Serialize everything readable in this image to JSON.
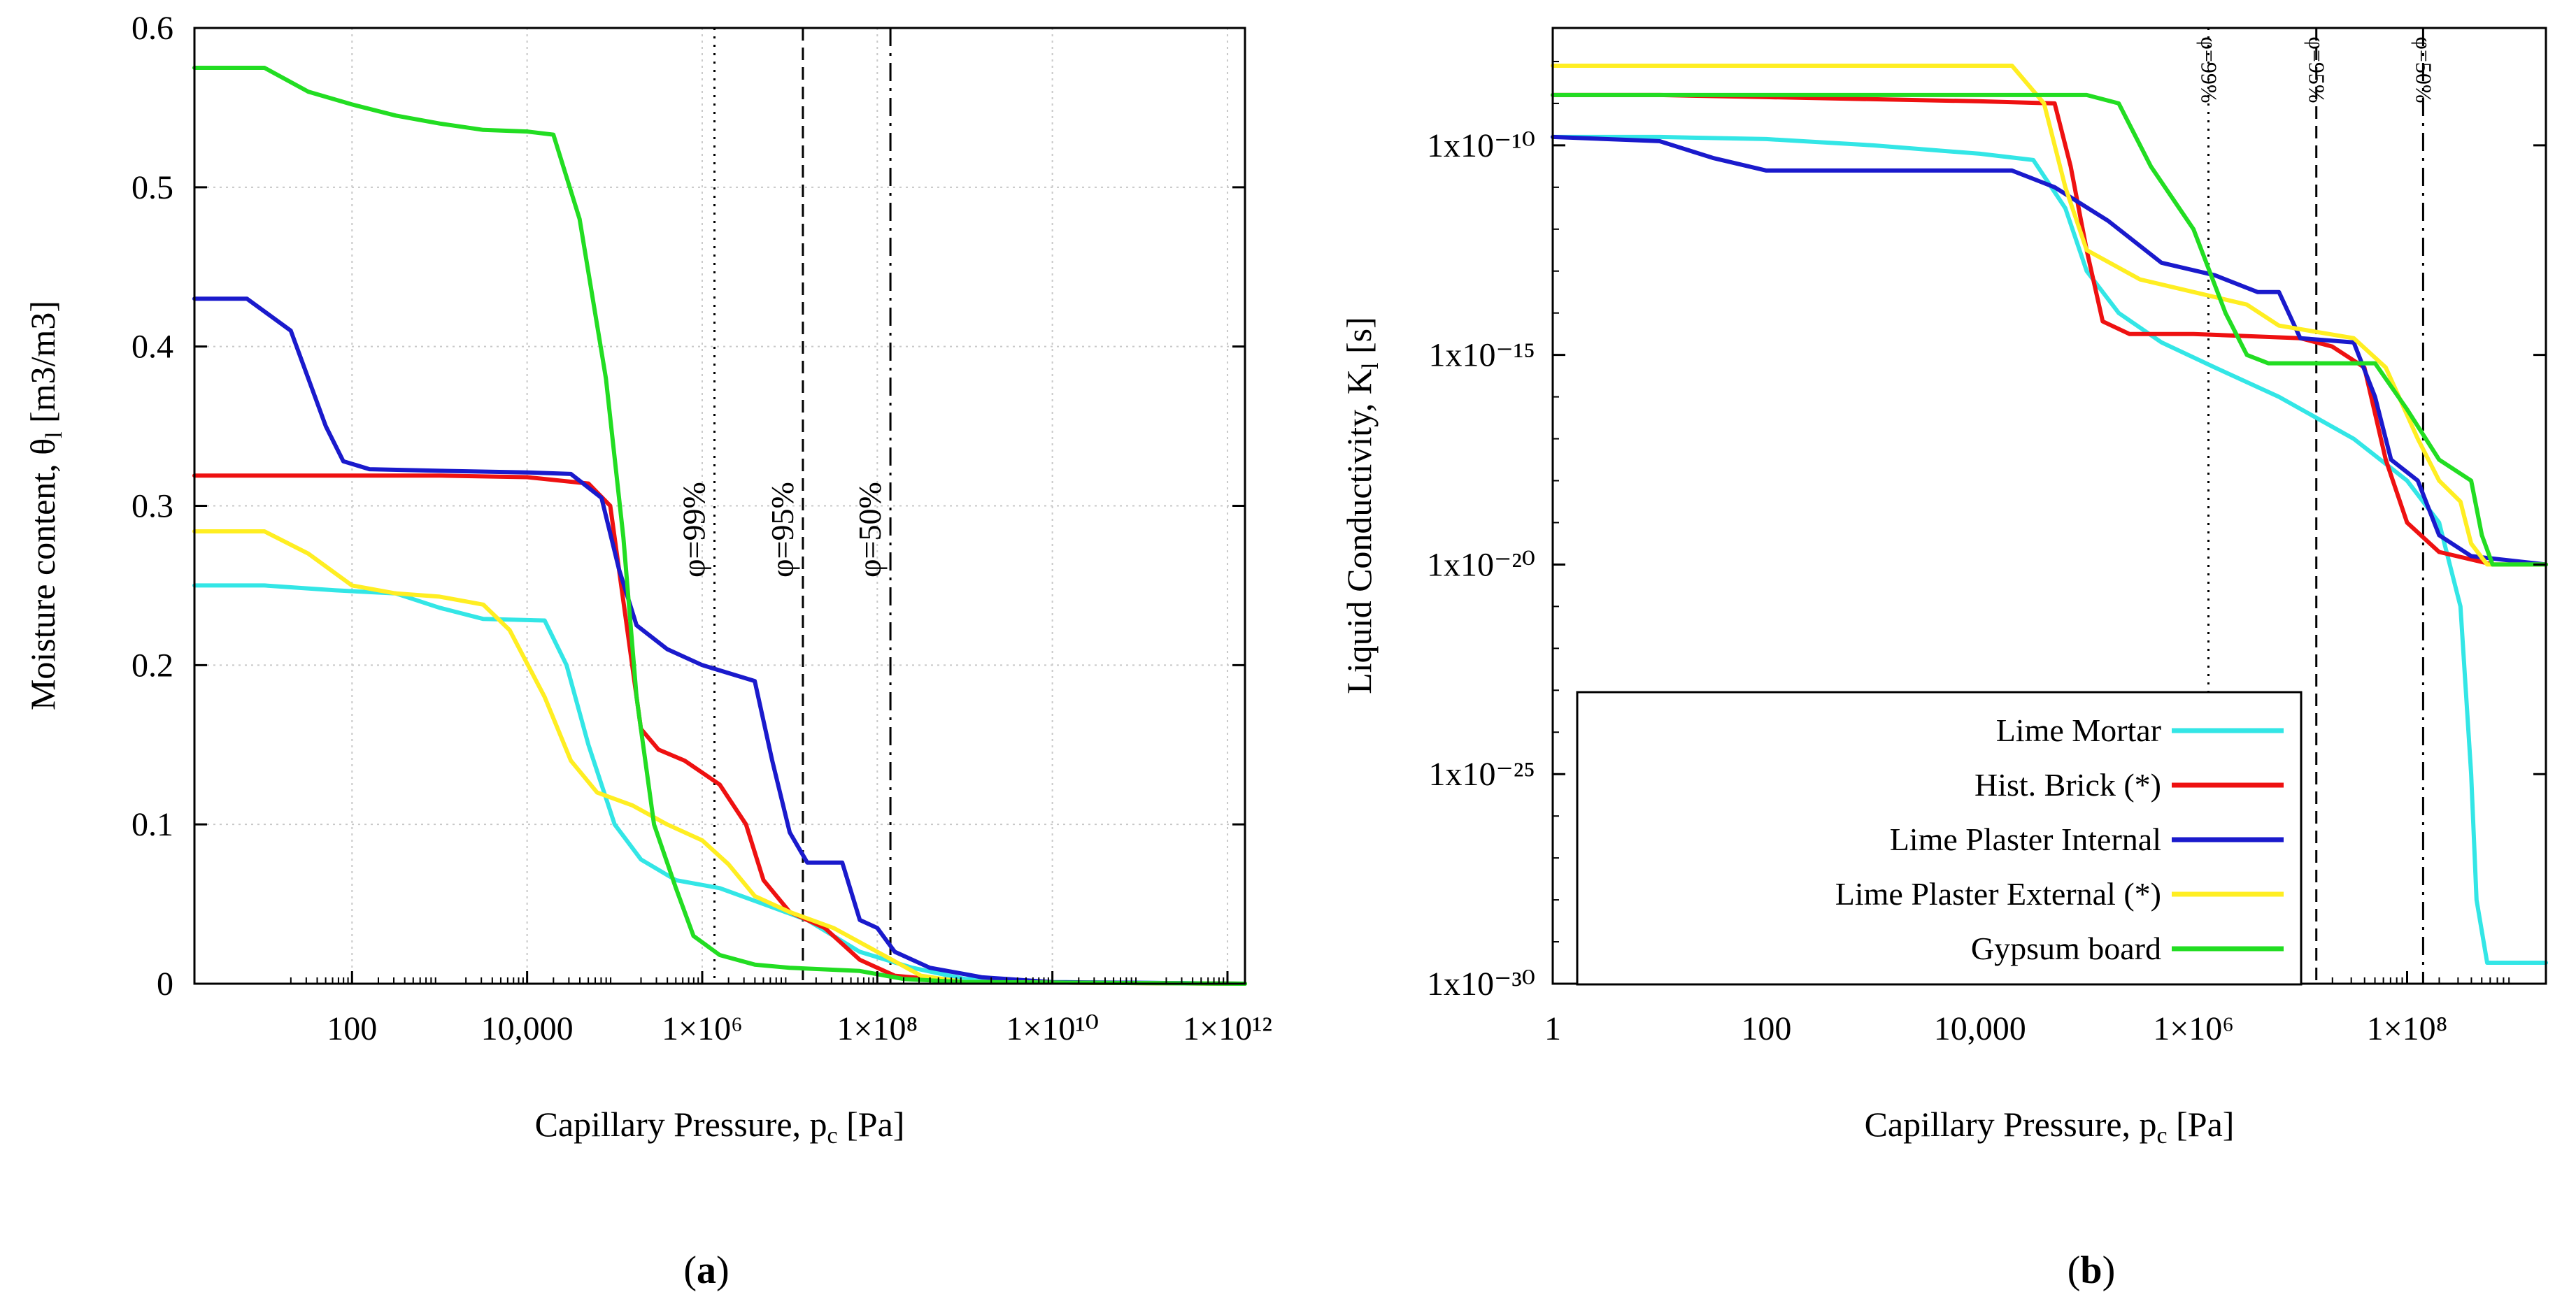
{
  "panel_labels": [
    "(a)",
    "(b)"
  ],
  "chart_data": [
    {
      "type": "line",
      "panel": "(a)",
      "xscale": "log",
      "xlim_log10": [
        0.2,
        12.2
      ],
      "ylim": [
        0,
        0.6
      ],
      "xlabel": "Capillary Pressure, p_c [Pa]",
      "ylabel": "Moisture content, θ_l [m3/m3]",
      "grid": true,
      "x_ticks": [
        {
          "log10": 2,
          "label": "100"
        },
        {
          "log10": 4,
          "label": "10,000"
        },
        {
          "log10": 6,
          "label": "1×10⁶"
        },
        {
          "log10": 8,
          "label": "1×10⁸"
        },
        {
          "log10": 10,
          "label": "1×10¹⁰"
        },
        {
          "log10": 12,
          "label": "1×10¹²"
        }
      ],
      "y_ticks": [
        {
          "value": 0,
          "label": "0"
        },
        {
          "value": 0.1,
          "label": "0.1"
        },
        {
          "value": 0.2,
          "label": "0.2"
        },
        {
          "value": 0.3,
          "label": "0.3"
        },
        {
          "value": 0.4,
          "label": "0.4"
        },
        {
          "value": 0.5,
          "label": "0.5"
        },
        {
          "value": 0.6,
          "label": "0.6"
        }
      ],
      "reference_lines": [
        {
          "label": "φ=99%",
          "log10": 6.14,
          "style": "dotted",
          "label_y": 0.255
        },
        {
          "label": "φ=95%",
          "log10": 7.15,
          "style": "dashed",
          "label_y": 0.255
        },
        {
          "label": "φ=50%",
          "log10": 8.15,
          "style": "dashdot",
          "label_y": 0.255
        }
      ],
      "series": [
        {
          "name": "Lime Mortar",
          "color": "#33e6e6",
          "points": [
            [
              0.2,
              0.25
            ],
            [
              1.0,
              0.25
            ],
            [
              1.8,
              0.247
            ],
            [
              2.5,
              0.245
            ],
            [
              3.0,
              0.236
            ],
            [
              3.5,
              0.229
            ],
            [
              4.2,
              0.228
            ],
            [
              4.45,
              0.2
            ],
            [
              4.7,
              0.15
            ],
            [
              5.0,
              0.1
            ],
            [
              5.3,
              0.078
            ],
            [
              5.7,
              0.065
            ],
            [
              6.2,
              0.06
            ],
            [
              6.7,
              0.05
            ],
            [
              7.2,
              0.04
            ],
            [
              7.8,
              0.02
            ],
            [
              8.4,
              0.01
            ],
            [
              9.0,
              0.003
            ],
            [
              10.0,
              0.001
            ],
            [
              12.2,
              0
            ]
          ]
        },
        {
          "name": "Hist. Brick (*)",
          "color": "#ee1111",
          "points": [
            [
              0.2,
              0.319
            ],
            [
              2.0,
              0.319
            ],
            [
              3.0,
              0.319
            ],
            [
              4.0,
              0.318
            ],
            [
              4.7,
              0.314
            ],
            [
              4.95,
              0.3
            ],
            [
              5.1,
              0.24
            ],
            [
              5.3,
              0.16
            ],
            [
              5.5,
              0.147
            ],
            [
              5.8,
              0.14
            ],
            [
              6.2,
              0.125
            ],
            [
              6.5,
              0.1
            ],
            [
              6.7,
              0.065
            ],
            [
              7.0,
              0.045
            ],
            [
              7.4,
              0.035
            ],
            [
              7.8,
              0.015
            ],
            [
              8.2,
              0.005
            ],
            [
              9.0,
              0.001
            ],
            [
              12.2,
              0
            ]
          ]
        },
        {
          "name": "Lime Plaster Internal",
          "color": "#1a1acc",
          "points": [
            [
              0.2,
              0.43
            ],
            [
              0.8,
              0.43
            ],
            [
              1.3,
              0.41
            ],
            [
              1.7,
              0.35
            ],
            [
              1.9,
              0.328
            ],
            [
              2.2,
              0.323
            ],
            [
              3.0,
              0.322
            ],
            [
              4.0,
              0.321
            ],
            [
              4.5,
              0.32
            ],
            [
              4.85,
              0.305
            ],
            [
              5.05,
              0.26
            ],
            [
              5.25,
              0.225
            ],
            [
              5.6,
              0.21
            ],
            [
              6.0,
              0.2
            ],
            [
              6.6,
              0.19
            ],
            [
              6.8,
              0.14
            ],
            [
              7.0,
              0.095
            ],
            [
              7.2,
              0.076
            ],
            [
              7.6,
              0.076
            ],
            [
              7.8,
              0.04
            ],
            [
              8.0,
              0.035
            ],
            [
              8.2,
              0.02
            ],
            [
              8.6,
              0.01
            ],
            [
              9.2,
              0.004
            ],
            [
              10.0,
              0.001
            ],
            [
              12.2,
              0
            ]
          ]
        },
        {
          "name": "Lime Plaster External (*)",
          "color": "#ffee22",
          "points": [
            [
              0.2,
              0.284
            ],
            [
              1.0,
              0.284
            ],
            [
              1.5,
              0.27
            ],
            [
              2.0,
              0.25
            ],
            [
              2.5,
              0.245
            ],
            [
              3.0,
              0.243
            ],
            [
              3.5,
              0.238
            ],
            [
              3.8,
              0.222
            ],
            [
              4.2,
              0.18
            ],
            [
              4.5,
              0.14
            ],
            [
              4.8,
              0.12
            ],
            [
              5.2,
              0.112
            ],
            [
              5.6,
              0.1
            ],
            [
              6.0,
              0.09
            ],
            [
              6.3,
              0.075
            ],
            [
              6.6,
              0.055
            ],
            [
              7.0,
              0.045
            ],
            [
              7.5,
              0.035
            ],
            [
              8.0,
              0.02
            ],
            [
              8.5,
              0.005
            ],
            [
              9.0,
              0.001
            ],
            [
              12.2,
              0
            ]
          ]
        },
        {
          "name": "Gypsum board",
          "color": "#22dd22",
          "points": [
            [
              0.2,
              0.575
            ],
            [
              1.0,
              0.575
            ],
            [
              1.5,
              0.56
            ],
            [
              2.0,
              0.552
            ],
            [
              2.5,
              0.545
            ],
            [
              3.0,
              0.54
            ],
            [
              3.5,
              0.536
            ],
            [
              4.0,
              0.535
            ],
            [
              4.3,
              0.533
            ],
            [
              4.6,
              0.48
            ],
            [
              4.9,
              0.38
            ],
            [
              5.1,
              0.28
            ],
            [
              5.25,
              0.18
            ],
            [
              5.45,
              0.1
            ],
            [
              5.7,
              0.06
            ],
            [
              5.9,
              0.03
            ],
            [
              6.2,
              0.018
            ],
            [
              6.6,
              0.012
            ],
            [
              7.0,
              0.01
            ],
            [
              7.8,
              0.008
            ],
            [
              8.3,
              0.003
            ],
            [
              9.0,
              0.001
            ],
            [
              12.2,
              0
            ]
          ]
        }
      ]
    },
    {
      "type": "line",
      "panel": "(b)",
      "xscale": "log",
      "yscale": "log",
      "xlim_log10": [
        0,
        9.3
      ],
      "ylim_log10": [
        -30,
        -7.2
      ],
      "xlabel": "Capillary Pressure, p_c [Pa]",
      "ylabel": "Liquid Conductivity, K_l [s]",
      "grid": false,
      "x_ticks": [
        {
          "log10": 0,
          "label": "1"
        },
        {
          "log10": 2,
          "label": "100"
        },
        {
          "log10": 4,
          "label": "10,000"
        },
        {
          "log10": 6,
          "label": "1×10⁶"
        },
        {
          "log10": 8,
          "label": "1×10⁸"
        }
      ],
      "y_ticks": [
        {
          "log10": -10,
          "label": "1x10⁻¹⁰"
        },
        {
          "log10": -15,
          "label": "1x10⁻¹⁵"
        },
        {
          "log10": -20,
          "label": "1x10⁻²⁰"
        },
        {
          "log10": -25,
          "label": "1x10⁻²⁵"
        },
        {
          "log10": -30,
          "label": "1x10⁻³⁰"
        }
      ],
      "reference_lines": [
        {
          "label": "φ=99%",
          "log10": 6.14,
          "style": "dotted",
          "label_y_log10": -8.2
        },
        {
          "label": "φ=95%",
          "log10": 7.15,
          "style": "dashed",
          "label_y_log10": -8.2
        },
        {
          "label": "φ=50%",
          "log10": 8.15,
          "style": "dashdot",
          "label_y_log10": -8.2
        }
      ],
      "legend": {
        "position": "bottom-left"
      },
      "series": [
        {
          "name": "Lime Mortar",
          "color": "#33e6e6",
          "points": [
            [
              0,
              -9.8
            ],
            [
              1,
              -9.8
            ],
            [
              2,
              -9.85
            ],
            [
              3,
              -10.0
            ],
            [
              4,
              -10.2
            ],
            [
              4.5,
              -10.35
            ],
            [
              4.8,
              -11.5
            ],
            [
              5.0,
              -13.0
            ],
            [
              5.3,
              -14.0
            ],
            [
              5.7,
              -14.7
            ],
            [
              6.2,
              -15.3
            ],
            [
              6.8,
              -16.0
            ],
            [
              7.5,
              -17.0
            ],
            [
              8.0,
              -18.0
            ],
            [
              8.3,
              -19.0
            ],
            [
              8.5,
              -21.0
            ],
            [
              8.6,
              -25.0
            ],
            [
              8.65,
              -28.0
            ],
            [
              8.75,
              -29.5
            ],
            [
              9.3,
              -29.5
            ]
          ]
        },
        {
          "name": "Hist. Brick (*)",
          "color": "#ee1111",
          "points": [
            [
              0,
              -8.8
            ],
            [
              1,
              -8.8
            ],
            [
              2,
              -8.85
            ],
            [
              3,
              -8.9
            ],
            [
              4,
              -8.95
            ],
            [
              4.7,
              -9.0
            ],
            [
              4.85,
              -10.5
            ],
            [
              5.0,
              -12.5
            ],
            [
              5.15,
              -14.2
            ],
            [
              5.4,
              -14.5
            ],
            [
              6.0,
              -14.5
            ],
            [
              7.0,
              -14.6
            ],
            [
              7.3,
              -14.8
            ],
            [
              7.6,
              -15.3
            ],
            [
              7.8,
              -17.5
            ],
            [
              8.0,
              -19.0
            ],
            [
              8.3,
              -19.7
            ],
            [
              8.8,
              -20.0
            ],
            [
              9.3,
              -20.0
            ]
          ]
        },
        {
          "name": "Lime Plaster Internal",
          "color": "#1a1acc",
          "points": [
            [
              0,
              -9.8
            ],
            [
              1,
              -9.9
            ],
            [
              1.5,
              -10.3
            ],
            [
              2.0,
              -10.6
            ],
            [
              3,
              -10.6
            ],
            [
              4.3,
              -10.6
            ],
            [
              4.7,
              -11.0
            ],
            [
              5.2,
              -11.8
            ],
            [
              5.7,
              -12.8
            ],
            [
              6.2,
              -13.1
            ],
            [
              6.6,
              -13.5
            ],
            [
              6.8,
              -13.5
            ],
            [
              7.0,
              -14.6
            ],
            [
              7.5,
              -14.7
            ],
            [
              7.7,
              -16.0
            ],
            [
              7.85,
              -17.5
            ],
            [
              8.1,
              -18.0
            ],
            [
              8.3,
              -19.3
            ],
            [
              8.6,
              -19.8
            ],
            [
              9.3,
              -20.0
            ]
          ]
        },
        {
          "name": "Lime Plaster External (*)",
          "color": "#ffee22",
          "points": [
            [
              0,
              -8.1
            ],
            [
              1,
              -8.1
            ],
            [
              2,
              -8.1
            ],
            [
              3,
              -8.1
            ],
            [
              4.3,
              -8.1
            ],
            [
              4.6,
              -9.0
            ],
            [
              4.8,
              -11.0
            ],
            [
              5.0,
              -12.5
            ],
            [
              5.5,
              -13.2
            ],
            [
              6.0,
              -13.5
            ],
            [
              6.5,
              -13.8
            ],
            [
              6.8,
              -14.3
            ],
            [
              7.5,
              -14.6
            ],
            [
              7.8,
              -15.3
            ],
            [
              8.1,
              -17.0
            ],
            [
              8.3,
              -18.0
            ],
            [
              8.5,
              -18.5
            ],
            [
              8.6,
              -19.5
            ],
            [
              8.75,
              -20.0
            ],
            [
              9.3,
              -20.0
            ]
          ]
        },
        {
          "name": "Gypsum board",
          "color": "#22dd22",
          "points": [
            [
              0,
              -8.8
            ],
            [
              1,
              -8.8
            ],
            [
              2,
              -8.8
            ],
            [
              3,
              -8.8
            ],
            [
              4,
              -8.8
            ],
            [
              5,
              -8.8
            ],
            [
              5.3,
              -9.0
            ],
            [
              5.6,
              -10.5
            ],
            [
              6.0,
              -12.0
            ],
            [
              6.3,
              -14.0
            ],
            [
              6.5,
              -15.0
            ],
            [
              6.7,
              -15.2
            ],
            [
              7.7,
              -15.2
            ],
            [
              8.0,
              -16.3
            ],
            [
              8.3,
              -17.5
            ],
            [
              8.6,
              -18.0
            ],
            [
              8.7,
              -19.3
            ],
            [
              8.8,
              -20.0
            ],
            [
              9.3,
              -20.0
            ]
          ]
        }
      ]
    }
  ]
}
